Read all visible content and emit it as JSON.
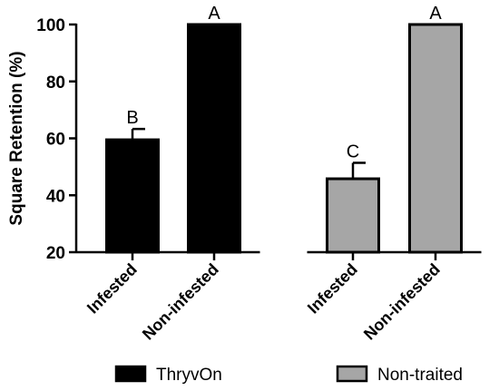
{
  "chart_data": {
    "type": "bar",
    "ylabel": "Square Retention (%)",
    "ylim": [
      20,
      100
    ],
    "yticks": [
      20,
      40,
      60,
      80,
      100
    ],
    "grid": false,
    "legend_position": "bottom",
    "groups": [
      {
        "name": "ThryvOn",
        "color": "#000000",
        "bars": [
          {
            "category": "Infested",
            "value": 59.5,
            "error": 3.8,
            "significance": "B"
          },
          {
            "category": "Non-infested",
            "value": 100,
            "error": 0,
            "significance": "A"
          }
        ]
      },
      {
        "name": "Non-traited",
        "color": "#a6a6a6",
        "bars": [
          {
            "category": "Infested",
            "value": 45.8,
            "error": 5.6,
            "significance": "C"
          },
          {
            "category": "Non-infested",
            "value": 100,
            "error": 0,
            "significance": "A"
          }
        ]
      }
    ]
  }
}
